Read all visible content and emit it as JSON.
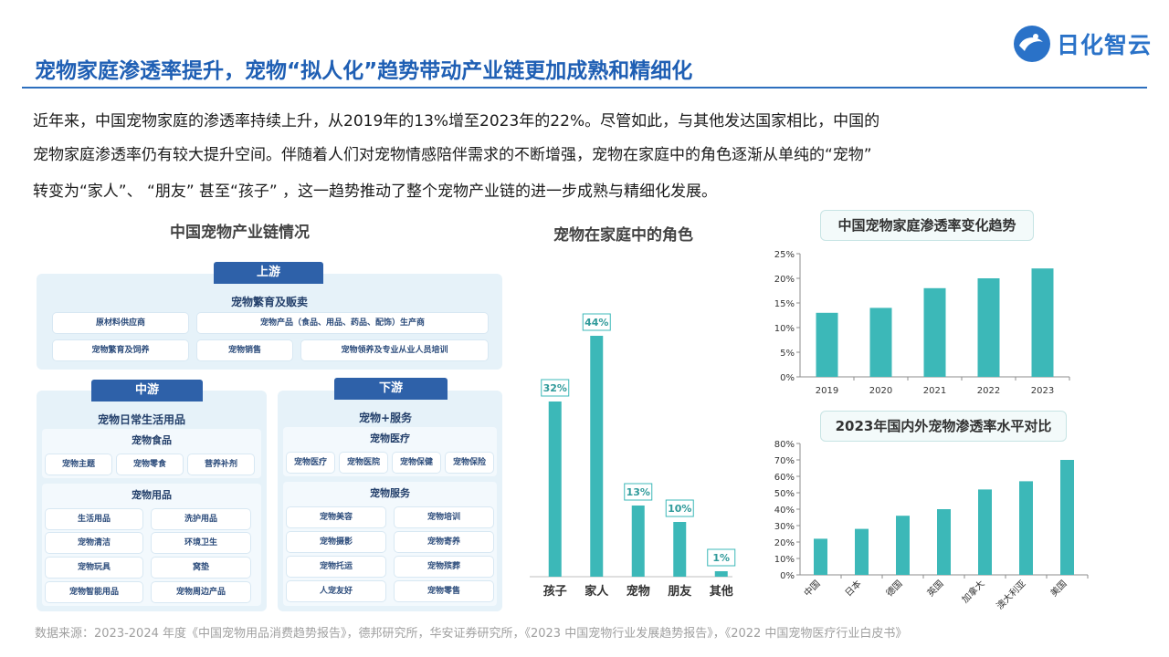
{
  "header": {
    "title": "宠物家庭渗透率提升，宠物“拟人化”趋势带动产业链更加成熟和精细化",
    "logo_text": "日化智云",
    "brand_color": "#2a72c8"
  },
  "intro": {
    "lines": [
      "近年来，中国宠物家庭的渗透率持续上升，从2019年的13%增至2023年的22%。尽管如此，与其他发达国家相比，中国的",
      "宠物家庭渗透率仍有较大提升空间。伴随着人们对宠物情感陪伴需求的不断增强，宠物在家庭中的角色逐渐从单纯的“宠物”",
      "转变为“家人”、 “朋友” 甚至“孩子” ，这一趋势推动了整个宠物产业链的进一步成熟与精细化发展。"
    ]
  },
  "chain": {
    "title": "中国宠物产业链情况",
    "upstream": {
      "tag": "上游",
      "heading": "宠物繁育及贩卖",
      "chips": [
        "原材料供应商",
        "宠物产品（食品、用品、药品、配饰）生产商",
        "宠物繁育及饲养",
        "宠物销售",
        "宠物领养及专业从业人员培训"
      ]
    },
    "midstream": {
      "tag": "中游",
      "heading": "宠物日常生活用品",
      "food_label": "宠物食品",
      "food_chips": [
        "宠物主题",
        "宠物零食",
        "营养补剂"
      ],
      "supplies_label": "宠物用品",
      "supplies_chips": [
        "生活用品",
        "洗护用品",
        "宠物清洁",
        "环境卫生",
        "宠物玩具",
        "窝垫",
        "宠物智能用品",
        "宠物周边产品"
      ]
    },
    "downstream": {
      "tag": "下游",
      "heading": "宠物+服务",
      "medical_label": "宠物医疗",
      "medical_chips": [
        "宠物医疗",
        "宠物医院",
        "宠物保健",
        "宠物保险"
      ],
      "service_label": "宠物服务",
      "service_chips": [
        "宠物美容",
        "宠物培训",
        "宠物摄影",
        "宠物寄养",
        "宠物托运",
        "宠物殡葬",
        "人宠友好",
        "宠物零售"
      ]
    }
  },
  "chart_data": [
    {
      "type": "bar",
      "title": "宠物在家庭中的角色",
      "categories": [
        "孩子",
        "家人",
        "宠物",
        "朋友",
        "其他"
      ],
      "values": [
        32,
        44,
        13,
        10,
        1
      ],
      "data_labels": [
        "32%",
        "44%",
        "13%",
        "10%",
        "1%"
      ],
      "ylim": [
        0,
        50
      ],
      "grid": false,
      "color": "#3cb8b8"
    },
    {
      "type": "bar",
      "title": "中国宠物家庭渗透率变化趋势",
      "categories": [
        "2019",
        "2020",
        "2021",
        "2022",
        "2023"
      ],
      "values": [
        13,
        14,
        18,
        20,
        22
      ],
      "yticks": [
        "0%",
        "5%",
        "10%",
        "15%",
        "20%",
        "25%"
      ],
      "ylim": [
        0,
        25
      ],
      "grid": false,
      "color": "#3cb8b8"
    },
    {
      "type": "bar",
      "title": "2023年国内外宠物渗透率水平对比",
      "categories": [
        "中国",
        "日本",
        "德国",
        "英国",
        "加拿大",
        "澳大利亚",
        "美国"
      ],
      "values": [
        22,
        28,
        36,
        40,
        52,
        57,
        70
      ],
      "yticks": [
        "0%",
        "10%",
        "20%",
        "30%",
        "40%",
        "50%",
        "60%",
        "70%",
        "80%"
      ],
      "ylim": [
        0,
        80
      ],
      "grid": false,
      "color": "#3cb8b8"
    }
  ],
  "footer": {
    "source": "数据来源：2023-2024 年度《中国宠物用品消费趋势报告》，德邦研究所，华安证券研究所，《2023 中国宠物行业发展趋势报告》，《2022 中国宠物医疗行业白皮书》"
  }
}
